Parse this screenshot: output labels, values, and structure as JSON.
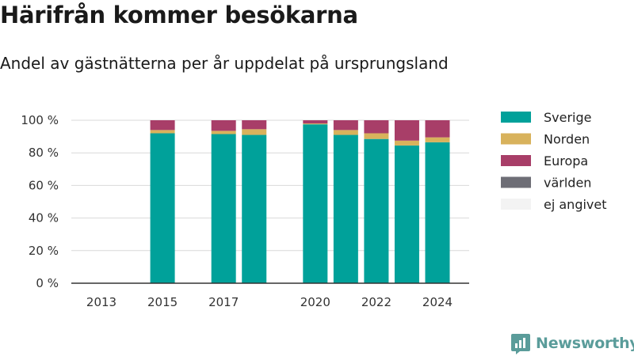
{
  "title": "Härifrån kommer besökarna",
  "subtitle": "Andel av gästnätterna per år uppdelat på ursprungsland",
  "brand": {
    "name": "Newsworthy",
    "icon": "newsworthy-logo-icon"
  },
  "chart_data": {
    "type": "bar",
    "stacked": true,
    "x": [
      2013,
      2014,
      2015,
      2016,
      2017,
      2018,
      2019,
      2020,
      2021,
      2022,
      2023,
      2024
    ],
    "x_tick_labels": [
      "2013",
      "2015",
      "2017",
      "2020",
      "2022",
      "2024"
    ],
    "y_ticks": [
      0,
      20,
      40,
      60,
      80,
      100
    ],
    "y_tick_labels": [
      "0 %",
      "20 %",
      "40 %",
      "60 %",
      "80 %",
      "100 %"
    ],
    "ylim": [
      0,
      100
    ],
    "grid": true,
    "legend_position": "right",
    "series": [
      {
        "name": "Sverige",
        "color": "#00a19a",
        "values": [
          null,
          null,
          92,
          null,
          91.5,
          91,
          null,
          97.5,
          91,
          88.5,
          84.5,
          86.5
        ]
      },
      {
        "name": "Norden",
        "color": "#d8b25c",
        "values": [
          null,
          null,
          2,
          null,
          2,
          3.5,
          null,
          0.5,
          3,
          3.5,
          3,
          3
        ]
      },
      {
        "name": "Europa",
        "color": "#a83e68",
        "values": [
          null,
          null,
          6,
          null,
          6.5,
          5.5,
          null,
          2,
          6,
          8,
          12.5,
          10.5
        ]
      },
      {
        "name": "världen",
        "color": "#6e6e76",
        "values": [
          null,
          null,
          0,
          null,
          0,
          0,
          null,
          0,
          0,
          0,
          0,
          0
        ]
      },
      {
        "name": "ej angivet",
        "color": "#f3f3f3",
        "values": [
          null,
          null,
          0,
          null,
          0,
          0,
          null,
          0,
          0,
          0,
          0,
          0
        ]
      }
    ]
  }
}
